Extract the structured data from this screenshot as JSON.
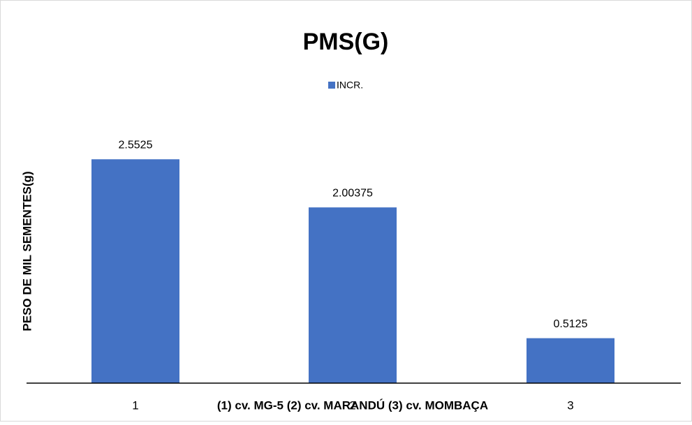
{
  "chart_data": {
    "type": "bar",
    "title": "PMS(G)",
    "x_label": "(1) cv. MG-5 (2) cv. MARANDÚ (3) cv. MOMBAÇA",
    "y_label": "PESO DE MIL SEMENTES(g)",
    "categories": [
      "1",
      "2",
      "3"
    ],
    "series": [
      {
        "name": "INCR.",
        "color": "#4472c4",
        "values": [
          2.5525,
          2.00375,
          0.5125
        ]
      }
    ],
    "ylim": [
      0,
      3
    ]
  }
}
